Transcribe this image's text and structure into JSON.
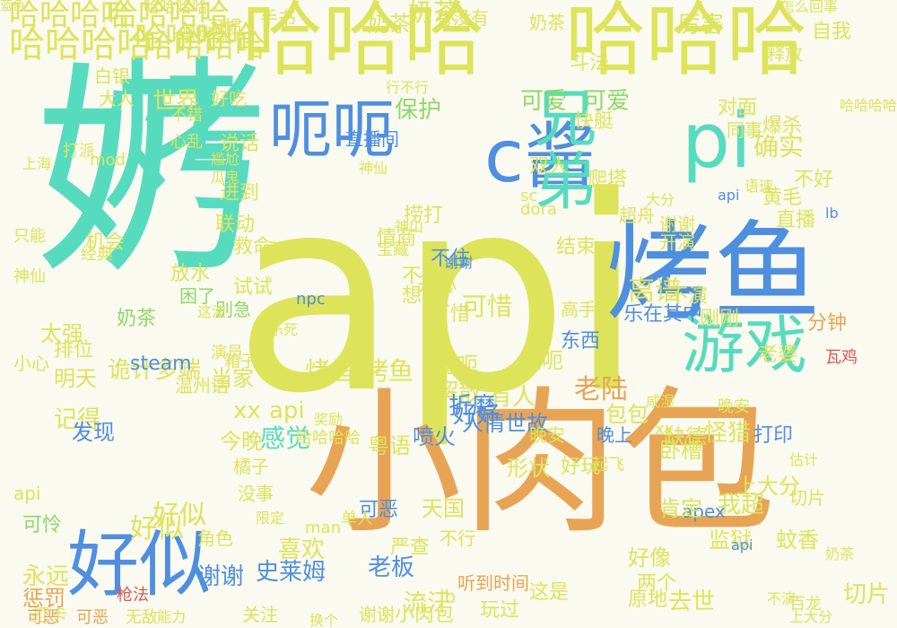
{
  "wordcloud": {
    "background": "#fafaf0",
    "words": [
      {
        "text": "api",
        "color": "#dde45a"
      },
      {
        "text": "小肉包",
        "color": "#e8a455"
      },
      {
        "text": "奶",
        "color": "#57dbbe"
      },
      {
        "text": "烤",
        "color": "#57dbbe"
      },
      {
        "text": "烤鱼",
        "color": "#4f8fe0"
      },
      {
        "text": "哈哈哈",
        "color": "#dde45a"
      },
      {
        "text": "哈哈哈",
        "color": "#dde45a"
      },
      {
        "text": "呃呃",
        "color": "#4f8fe0"
      },
      {
        "text": "c酱",
        "color": "#4f8fe0"
      },
      {
        "text": "兄弟",
        "color": "#57dbbe"
      },
      {
        "text": "pi",
        "color": "#57dbbe"
      },
      {
        "text": "游戏",
        "color": "#57dbbe"
      },
      {
        "text": "好似",
        "color": "#4f8fe0"
      },
      {
        "text": "哈哈哈哈",
        "color": "#dde45a"
      },
      {
        "text": "哈哈哈哈",
        "color": "#dde45a"
      },
      {
        "text": "哈哈哈哈",
        "color": "#dde45a"
      },
      {
        "text": "哈哈哈哈",
        "color": "#dde45a"
      },
      {
        "text": "奶茶",
        "color": "#dde45a"
      },
      {
        "text": "奶茶",
        "color": "#dde45a"
      },
      {
        "text": "确实",
        "color": "#dde45a"
      },
      {
        "text": "哈哈哈哈",
        "color": "#dde45a"
      },
      {
        "text": "可爱",
        "color": "#8fd86a"
      },
      {
        "text": "可爱",
        "color": "#8fd86a"
      },
      {
        "text": "保护",
        "color": "#8fd86a"
      },
      {
        "text": "情商",
        "color": "#dde45a"
      },
      {
        "text": "神仙",
        "color": "#dde45a"
      },
      {
        "text": "不演",
        "color": "#dde45a"
      },
      {
        "text": "直播",
        "color": "#dde45a"
      },
      {
        "text": "结束",
        "color": "#dde45a"
      },
      {
        "text": "开演",
        "color": "#dde45a"
      },
      {
        "text": "谢谢",
        "color": "#dde45a"
      },
      {
        "text": "离谱",
        "color": "#dde45a"
      },
      {
        "text": "开心",
        "color": "#dde45a"
      },
      {
        "text": "不住",
        "color": "#4f8fe0"
      },
      {
        "text": "可惜",
        "color": "#dde45a"
      },
      {
        "text": "刚刚",
        "color": "#dde45a"
      },
      {
        "text": "分钟",
        "color": "#e8a455"
      },
      {
        "text": "老婆",
        "color": "#dde45a"
      },
      {
        "text": "太强",
        "color": "#dde45a"
      },
      {
        "text": "排位",
        "color": "#dde45a"
      },
      {
        "text": "机会",
        "color": "#dde45a"
      },
      {
        "text": "放水",
        "color": "#dde45a"
      },
      {
        "text": "救命",
        "color": "#dde45a"
      },
      {
        "text": "试试",
        "color": "#dde45a"
      },
      {
        "text": "别急",
        "color": "#8fd86a"
      },
      {
        "text": "困了",
        "color": "#8fd86a"
      },
      {
        "text": "奶茶",
        "color": "#8fd86a"
      },
      {
        "text": "呃呃",
        "color": "#dde45a"
      },
      {
        "text": "呃呃",
        "color": "#dde45a"
      },
      {
        "text": "烤鱼",
        "color": "#dde45a"
      },
      {
        "text": "烤鱼",
        "color": "#dde45a"
      },
      {
        "text": "解散",
        "color": "#dde45a"
      },
      {
        "text": "有人",
        "color": "#dde45a"
      },
      {
        "text": "老陆",
        "color": "#e8a455"
      },
      {
        "text": "诡计多端",
        "color": "#dde45a"
      },
      {
        "text": "明天",
        "color": "#dde45a"
      },
      {
        "text": "温州话",
        "color": "#dde45a"
      },
      {
        "text": "当家",
        "color": "#dde45a"
      },
      {
        "text": "折磨",
        "color": "#4f8fe0"
      },
      {
        "text": "xx",
        "color": "#dde45a"
      },
      {
        "text": "api",
        "color": "#dde45a"
      },
      {
        "text": "记得",
        "color": "#dde45a"
      },
      {
        "text": "发现",
        "color": "#4f8fe0"
      },
      {
        "text": "感觉",
        "color": "#57dbbe"
      },
      {
        "text": "人情世故",
        "color": "#4f8fe0"
      },
      {
        "text": "好好",
        "color": "#4f8fe0"
      },
      {
        "text": "包包",
        "color": "#dde45a"
      },
      {
        "text": "怪猎",
        "color": "#dde45a"
      },
      {
        "text": "缺德",
        "color": "#dde45a"
      },
      {
        "text": "粤语",
        "color": "#dde45a"
      },
      {
        "text": "喷火",
        "color": "#4f8fe0"
      },
      {
        "text": "今晚",
        "color": "#dde45a"
      },
      {
        "text": "好似",
        "color": "#dde45a"
      },
      {
        "text": "好似",
        "color": "#dde45a"
      },
      {
        "text": "橘子",
        "color": "#dde45a"
      },
      {
        "text": "可怜",
        "color": "#8fd86a"
      },
      {
        "text": "永远",
        "color": "#dde45a"
      },
      {
        "text": "谢谢",
        "color": "#4f8fe0"
      },
      {
        "text": "史莱姆",
        "color": "#4f8fe0"
      },
      {
        "text": "喜欢",
        "color": "#dde45a"
      },
      {
        "text": "老板",
        "color": "#4f8fe0"
      },
      {
        "text": "严查",
        "color": "#dde45a"
      },
      {
        "text": "流汗",
        "color": "#dde45a"
      },
      {
        "text": "形状",
        "color": "#dde45a"
      },
      {
        "text": "好玩",
        "color": "#dde45a"
      },
      {
        "text": "好像",
        "color": "#dde45a"
      },
      {
        "text": "卧槽",
        "color": "#dde45a"
      },
      {
        "text": "我超",
        "color": "#dde45a"
      },
      {
        "text": "监狱",
        "color": "#dde45a"
      },
      {
        "text": "蚊香",
        "color": "#dde45a"
      },
      {
        "text": "上大分",
        "color": "#dde45a"
      },
      {
        "text": "切片",
        "color": "#dde45a"
      },
      {
        "text": "原地",
        "color": "#dde45a"
      },
      {
        "text": "去世",
        "color": "#dde45a"
      },
      {
        "text": "两个",
        "color": "#dde45a"
      },
      {
        "text": "这是",
        "color": "#dde45a"
      },
      {
        "text": "听到时间",
        "color": "#e8a455"
      },
      {
        "text": "玩过",
        "color": "#dde45a"
      },
      {
        "text": "谢谢",
        "color": "#dde45a"
      },
      {
        "text": "小肉包",
        "color": "#dde45a"
      },
      {
        "text": "关注",
        "color": "#dde45a"
      },
      {
        "text": "打卡",
        "color": "#dde45a"
      },
      {
        "text": "惩罚",
        "color": "#e8a455"
      },
      {
        "text": "哈哈哈哈",
        "color": "#dde45a"
      },
      {
        "text": "世界",
        "color": "#dde45a"
      },
      {
        "text": "大人",
        "color": "#dde45a"
      },
      {
        "text": "好吃",
        "color": "#dde45a"
      },
      {
        "text": "说话",
        "color": "#dde45a"
      },
      {
        "text": "进到",
        "color": "#dde45a"
      },
      {
        "text": "联动",
        "color": "#dde45a"
      },
      {
        "text": "经典",
        "color": "#dde45a"
      },
      {
        "text": "白银",
        "color": "#dde45a"
      },
      {
        "text": "习惯",
        "color": "#dde45a"
      },
      {
        "text": "手书",
        "color": "#dde45a"
      },
      {
        "text": "有没有",
        "color": "#dde45a"
      },
      {
        "text": "奶茶",
        "color": "#dde45a"
      },
      {
        "text": "厉害",
        "color": "#dde45a"
      },
      {
        "text": "斗法",
        "color": "#dde45a"
      },
      {
        "text": "释放",
        "color": "#dde45a"
      },
      {
        "text": "自我",
        "color": "#dde45a"
      },
      {
        "text": "直播间",
        "color": "#4f8fe0"
      },
      {
        "text": "快艇",
        "color": "#dde45a"
      },
      {
        "text": "对面",
        "color": "#dde45a"
      },
      {
        "text": "同事",
        "color": "#dde45a"
      },
      {
        "text": "爆杀",
        "color": "#dde45a"
      },
      {
        "text": "双人",
        "color": "#dde45a"
      },
      {
        "text": "爬塔",
        "color": "#dde45a"
      },
      {
        "text": "捞打",
        "color": "#dde45a"
      },
      {
        "text": "不好",
        "color": "#dde45a"
      },
      {
        "text": "黄毛",
        "color": "#dde45a"
      },
      {
        "text": "超舟",
        "color": "#dde45a"
      },
      {
        "text": "steam",
        "color": "#4f8fe0"
      },
      {
        "text": "apex",
        "color": "#4f8fe0"
      },
      {
        "text": "npc",
        "color": "#4f8fe0"
      },
      {
        "text": "dora",
        "color": "#dde45a"
      },
      {
        "text": "sc",
        "color": "#dde45a"
      },
      {
        "text": "lb",
        "color": "#dde45a"
      },
      {
        "text": "api",
        "color": "#4f8fe0"
      },
      {
        "text": "xx",
        "color": "#dde45a"
      },
      {
        "text": "晚安",
        "color": "#dde45a"
      },
      {
        "text": "晚安",
        "color": "#dde45a"
      },
      {
        "text": "晚上",
        "color": "#4f8fe0"
      },
      {
        "text": "瓦鸡",
        "color": "#d9534f"
      },
      {
        "text": "箱子",
        "color": "#dde45a"
      },
      {
        "text": "打印",
        "color": "#4f8fe0"
      },
      {
        "text": "起飞",
        "color": "#dde45a"
      },
      {
        "text": "肯定",
        "color": "#dde45a"
      },
      {
        "text": "不行",
        "color": "#dde45a"
      },
      {
        "text": "天国",
        "color": "#dde45a"
      },
      {
        "text": "可恶",
        "color": "#4f8fe0"
      },
      {
        "text": "小心",
        "color": "#dde45a"
      },
      {
        "text": "没事",
        "color": "#dde45a"
      },
      {
        "text": "角色",
        "color": "#dde45a"
      },
      {
        "text": "演员",
        "color": "#dde45a"
      },
      {
        "text": "哈哈哈哈",
        "color": "#dde45a"
      },
      {
        "text": "嘿嘿嘿",
        "color": "#dde45a"
      },
      {
        "text": "可恶",
        "color": "#e8a455"
      },
      {
        "text": "可恶",
        "color": "#e8a455"
      },
      {
        "text": "无敌",
        "color": "#dde45a"
      },
      {
        "text": "能力",
        "color": "#dde45a"
      },
      {
        "text": "枪法",
        "color": "#d9534f"
      },
      {
        "text": "神山",
        "color": "#dde45a"
      },
      {
        "text": "高手",
        "color": "#dde45a"
      },
      {
        "text": "不错",
        "color": "#dde45a"
      },
      {
        "text": "心乱",
        "color": "#dde45a"
      },
      {
        "text": "mod",
        "color": "#dde45a"
      },
      {
        "text": "打派",
        "color": "#dde45a"
      },
      {
        "text": "上海",
        "color": "#dde45a"
      },
      {
        "text": "尴尬",
        "color": "#dde45a"
      },
      {
        "text": "瓜鬼",
        "color": "#dde45a"
      },
      {
        "text": "神仙",
        "color": "#dde45a"
      },
      {
        "text": "只能",
        "color": "#dde45a"
      },
      {
        "text": "薄纱",
        "color": "#dde45a"
      },
      {
        "text": "宝藏",
        "color": "#dde45a"
      },
      {
        "text": "打架",
        "color": "#dde45a"
      },
      {
        "text": "大分",
        "color": "#dde45a"
      },
      {
        "text": "语速",
        "color": "#dde45a"
      },
      {
        "text": "lb",
        "color": "#4f8fe0"
      },
      {
        "text": "man",
        "color": "#dde45a"
      },
      {
        "text": "上大分",
        "color": "#dde45a"
      },
      {
        "text": "奖励",
        "color": "#dde45a"
      },
      {
        "text": "咸湿",
        "color": "#dde45a"
      },
      {
        "text": "估计",
        "color": "#dde45a"
      },
      {
        "text": "奶茶",
        "color": "#dde45a"
      },
      {
        "text": "切片",
        "color": "#dde45a"
      },
      {
        "text": "百龙",
        "color": "#dde45a"
      },
      {
        "text": "这波",
        "color": "#dde45a"
      },
      {
        "text": "单人",
        "color": "#dde45a"
      },
      {
        "text": "可惜",
        "color": "#dde45a"
      },
      {
        "text": "不想",
        "color": "#dde45a"
      },
      {
        "text": "乐在其中",
        "color": "#4f8fe0"
      },
      {
        "text": "东西",
        "color": "#4f8fe0"
      },
      {
        "text": "行不行",
        "color": "#dde45a"
      },
      {
        "text": "怎么回事",
        "color": "#dde45a"
      },
      {
        "text": "哈哈哈哈",
        "color": "#dde45a"
      },
      {
        "text": "不演",
        "color": "#dde45a"
      },
      {
        "text": "api",
        "color": "#4f8fe0"
      },
      {
        "text": "谢谢",
        "color": "#4f8fe0"
      },
      {
        "text": "api",
        "color": "#dde45a"
      },
      {
        "text": "乐死",
        "color": "#dde45a"
      },
      {
        "text": "限定",
        "color": "#dde45a"
      },
      {
        "text": "换个",
        "color": "#dde45a"
      },
      {
        "text": "蓝色",
        "color": "#dde45a"
      }
    ]
  }
}
